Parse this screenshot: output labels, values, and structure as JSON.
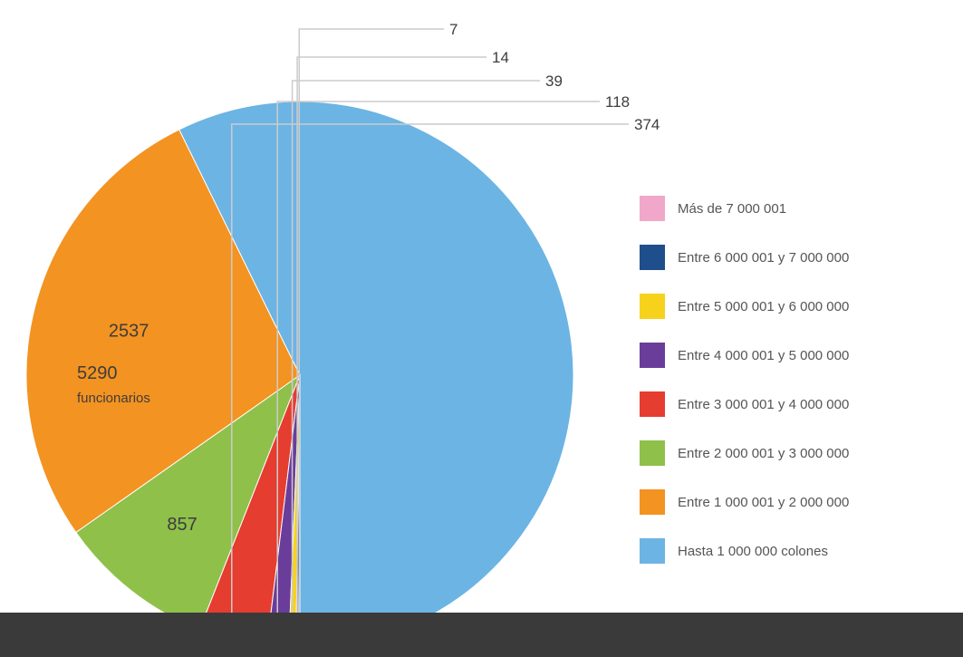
{
  "chart_data": {
    "type": "pie",
    "slices": [
      {
        "label": "Hasta 1 000 000 colones",
        "value": 5290,
        "display_value": "5290",
        "display_sub": "funcionarios",
        "color": "#6cb4e4"
      },
      {
        "label": "Entre 1 000 001 y 2 000 000",
        "value": 2537,
        "display_value": "2537",
        "display_sub": "",
        "color": "#f39321"
      },
      {
        "label": "Entre 2 000 001 y 3 000 000",
        "value": 857,
        "display_value": "857",
        "display_sub": "",
        "color": "#8fc04a"
      },
      {
        "label": "Entre 3 000 001 y 4 000 000",
        "value": 374,
        "display_value": "374",
        "display_sub": "",
        "color": "#e53d2f"
      },
      {
        "label": "Entre 4 000 001 y 5 000 000",
        "value": 118,
        "display_value": "118",
        "display_sub": "",
        "color": "#6a3d9a"
      },
      {
        "label": "Entre 5 000 001 y 6 000 000",
        "value": 39,
        "display_value": "39",
        "display_sub": "",
        "color": "#f7d21d"
      },
      {
        "label": "Entre 6 000 001 y 7 000 000",
        "value": 14,
        "display_value": "14",
        "display_sub": "",
        "color": "#1f4e8c"
      },
      {
        "label": "Más de 7 000 001",
        "value": 7,
        "display_value": "7",
        "display_sub": "",
        "color": "#f1a7c9"
      }
    ],
    "legend_order": [
      7,
      6,
      5,
      4,
      3,
      2,
      1,
      0
    ],
    "legend_placement": "right"
  }
}
